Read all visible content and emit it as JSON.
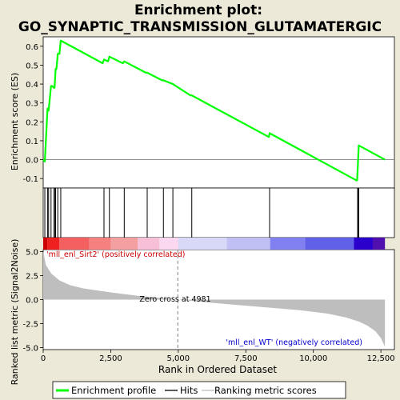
{
  "chart_data": {
    "type": "line",
    "title_line1": "Enrichment plot:",
    "title_line2": "GO_SYNAPTIC_TRANSMISSION_GLUTAMATERGIC",
    "colors": {
      "background": "#ece9d8",
      "plot_bg": "#ffffff",
      "es_line": "#00ff00",
      "hits": "#000000",
      "metric_fill": "#bebebe",
      "zero_cross_line": "#808080",
      "pos_label": "#cc0000",
      "neg_label": "#0000cc"
    },
    "es_panel": {
      "ylabel": "Enrichment score (ES)",
      "ylim": [
        -0.15,
        0.65
      ],
      "yticks": [
        -0.1,
        0.0,
        0.1,
        0.2,
        0.3,
        0.4,
        0.5,
        0.6
      ],
      "ytick_labels": [
        "-0.1",
        "0.0",
        "0.1",
        "0.2",
        "0.3",
        "0.4",
        "0.5",
        "0.6"
      ],
      "x": [
        0,
        60,
        160,
        200,
        290,
        330,
        400,
        420,
        460,
        490,
        540,
        600,
        650,
        2200,
        2250,
        2400,
        2450,
        2950,
        3000,
        3800,
        3850,
        4400,
        4450,
        4800,
        5450,
        5500,
        8350,
        8380,
        11600,
        11620,
        11650,
        11680,
        12650
      ],
      "y": [
        0.0,
        -0.01,
        0.27,
        0.26,
        0.39,
        0.39,
        0.38,
        0.38,
        0.48,
        0.48,
        0.56,
        0.56,
        0.63,
        0.51,
        0.53,
        0.52,
        0.545,
        0.51,
        0.52,
        0.46,
        0.46,
        0.42,
        0.42,
        0.4,
        0.34,
        0.34,
        0.12,
        0.14,
        -0.11,
        -0.11,
        -0.02,
        0.075,
        0.0
      ]
    },
    "hits_panel": {
      "positions": [
        60,
        160,
        200,
        290,
        400,
        420,
        460,
        540,
        650,
        2250,
        2450,
        3000,
        3850,
        4450,
        4800,
        5500,
        8380,
        11640,
        11660,
        11680
      ]
    },
    "ranking_bar": {
      "segments": [
        {
          "x0": 0,
          "x1": 150,
          "color": "#cc0000"
        },
        {
          "x0": 150,
          "x1": 600,
          "color": "#ee2020"
        },
        {
          "x0": 600,
          "x1": 1700,
          "color": "#f46060"
        },
        {
          "x0": 1700,
          "x1": 2500,
          "color": "#f48080"
        },
        {
          "x0": 2500,
          "x1": 3500,
          "color": "#f4a0a0"
        },
        {
          "x0": 3500,
          "x1": 4300,
          "color": "#f8c0d8"
        },
        {
          "x0": 4300,
          "x1": 5000,
          "color": "#fcd8f0"
        },
        {
          "x0": 5000,
          "x1": 6800,
          "color": "#d8d8f8"
        },
        {
          "x0": 6800,
          "x1": 8400,
          "color": "#c0c0f4"
        },
        {
          "x0": 8400,
          "x1": 9700,
          "color": "#8080f0"
        },
        {
          "x0": 9700,
          "x1": 11500,
          "color": "#6060e8"
        },
        {
          "x0": 11500,
          "x1": 12200,
          "color": "#2a00cc"
        },
        {
          "x0": 12200,
          "x1": 12650,
          "color": "#5010b0"
        }
      ]
    },
    "metric_panel": {
      "ylabel": "Ranked list metric (Signal2Noise)",
      "ylim": [
        -5.2,
        5.2
      ],
      "yticks": [
        -5.0,
        -2.5,
        0.0,
        2.5,
        5.0
      ],
      "ytick_labels": [
        "-5.0",
        "-2.5",
        "0.0",
        "2.5",
        "5.0"
      ],
      "x": [
        0,
        100,
        300,
        600,
        1000,
        1500,
        2500,
        3500,
        4981,
        6500,
        8000,
        9500,
        10500,
        11200,
        11700,
        12000,
        12300,
        12500,
        12650
      ],
      "y": [
        5.0,
        3.6,
        2.7,
        2.0,
        1.5,
        1.15,
        0.75,
        0.4,
        0.0,
        -0.4,
        -0.75,
        -1.1,
        -1.45,
        -1.85,
        -2.3,
        -2.7,
        -3.3,
        -4.0,
        -4.9
      ],
      "zero_cross": 4981,
      "zero_cross_label": "Zero cross at 4981",
      "pos_label": "'mll_enl_Sirt2' (positively correlated)",
      "neg_label": "'mll_enl_WT' (negatively correlated)"
    },
    "xaxis": {
      "xlabel": "Rank in Ordered Dataset",
      "xlim": [
        0,
        13000
      ],
      "xticks": [
        0,
        2500,
        5000,
        7500,
        10000,
        12500
      ],
      "xtick_labels": [
        "0",
        "2,500",
        "5,000",
        "7,500",
        "10,000",
        "12,500"
      ]
    },
    "legend": {
      "placement": "bottom",
      "entries": [
        {
          "label": "Enrichment profile",
          "kind": "es"
        },
        {
          "label": "Hits",
          "kind": "hits"
        },
        {
          "label": "Ranking metric scores",
          "kind": "metric"
        }
      ]
    }
  }
}
